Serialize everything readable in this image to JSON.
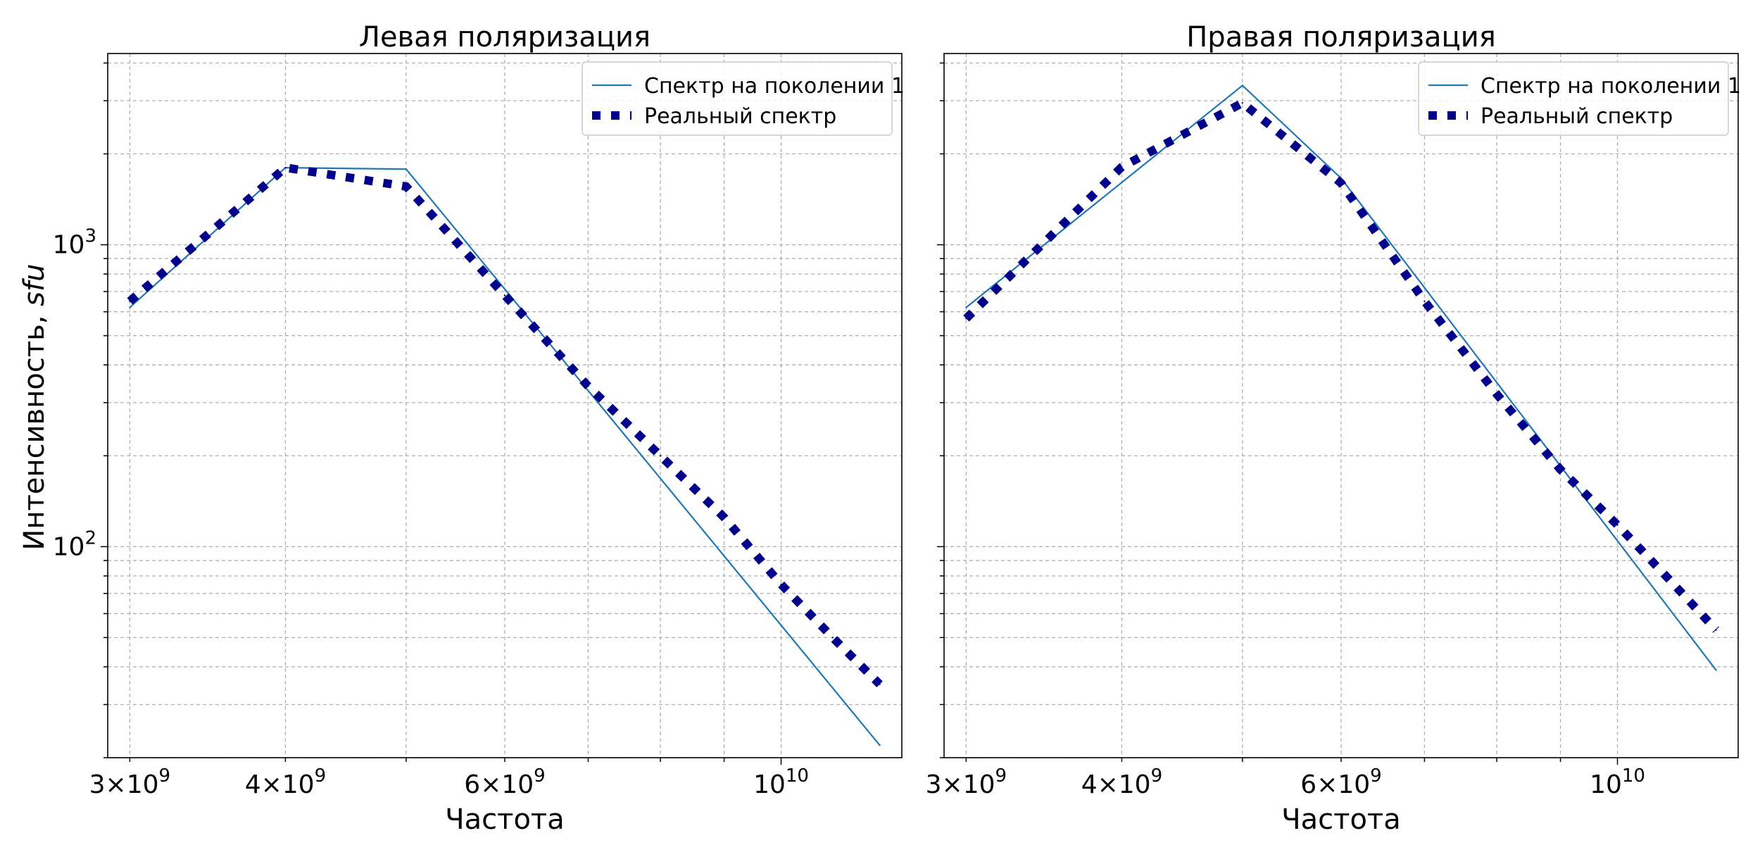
{
  "figure": {
    "ylabel_main": "Интенсивность, ",
    "ylabel_italic": "sfu"
  },
  "colors": {
    "model_line": "#1f77b4",
    "real_marker": "#00008b",
    "grid": "#b0b0b0",
    "axes": "#000000"
  },
  "chart_data": [
    {
      "type": "line",
      "title": "Левая поляризация",
      "xlabel": "Частота",
      "ylabel": "Интенсивность, sfu",
      "xscale": "log",
      "yscale": "log",
      "xlim": [
        2880000000.0,
        12500000000.0
      ],
      "ylim": [
        20,
        4300
      ],
      "grid": true,
      "legend_position": "top-right",
      "xticks": [
        {
          "mantissa": "3",
          "exp": "9"
        },
        {
          "mantissa": "4",
          "exp": "9"
        },
        {
          "mantissa": "6",
          "exp": "9"
        },
        {
          "mantissa": "",
          "exp": "10"
        }
      ],
      "yticks": [
        {
          "mantissa": "",
          "exp": "2"
        },
        {
          "mantissa": "",
          "exp": "3"
        }
      ],
      "series": [
        {
          "name": "Спектр на поколении 1",
          "style": "line",
          "x": [
            3000000000.0,
            4000000000.0,
            5000000000.0,
            12000000000.0
          ],
          "y": [
            620,
            1800,
            1780,
            22
          ]
        },
        {
          "name": "Реальный спектр",
          "style": "dotted",
          "x": [
            3000000000.0,
            4000000000.0,
            5000000000.0,
            6000000000.0,
            7000000000.0,
            8000000000.0,
            9000000000.0,
            10000000000.0,
            11000000000.0,
            12000000000.0
          ],
          "y": [
            650,
            1800,
            1560,
            680,
            340,
            200,
            125,
            75,
            50,
            35
          ]
        }
      ]
    },
    {
      "type": "line",
      "title": "Правая поляризация",
      "xlabel": "Частота",
      "ylabel": "",
      "xscale": "log",
      "yscale": "log",
      "xlim": [
        2880000000.0,
        12500000000.0
      ],
      "ylim": [
        20,
        4300
      ],
      "grid": true,
      "legend_position": "top-right",
      "xticks": [
        {
          "mantissa": "3",
          "exp": "9"
        },
        {
          "mantissa": "4",
          "exp": "9"
        },
        {
          "mantissa": "6",
          "exp": "9"
        },
        {
          "mantissa": "",
          "exp": "10"
        }
      ],
      "yticks": [],
      "series": [
        {
          "name": "Спектр на поколении 1",
          "style": "line",
          "x": [
            3000000000.0,
            5000000000.0,
            6000000000.0,
            12000000000.0
          ],
          "y": [
            620,
            3370,
            1660,
            39
          ]
        },
        {
          "name": "Реальный спектр",
          "style": "dotted",
          "x": [
            3000000000.0,
            4000000000.0,
            5000000000.0,
            6000000000.0,
            7000000000.0,
            8000000000.0,
            9000000000.0,
            10000000000.0,
            11000000000.0,
            12000000000.0
          ],
          "y": [
            570,
            1810,
            2950,
            1600,
            650,
            320,
            180,
            118,
            78,
            53
          ]
        }
      ]
    }
  ]
}
